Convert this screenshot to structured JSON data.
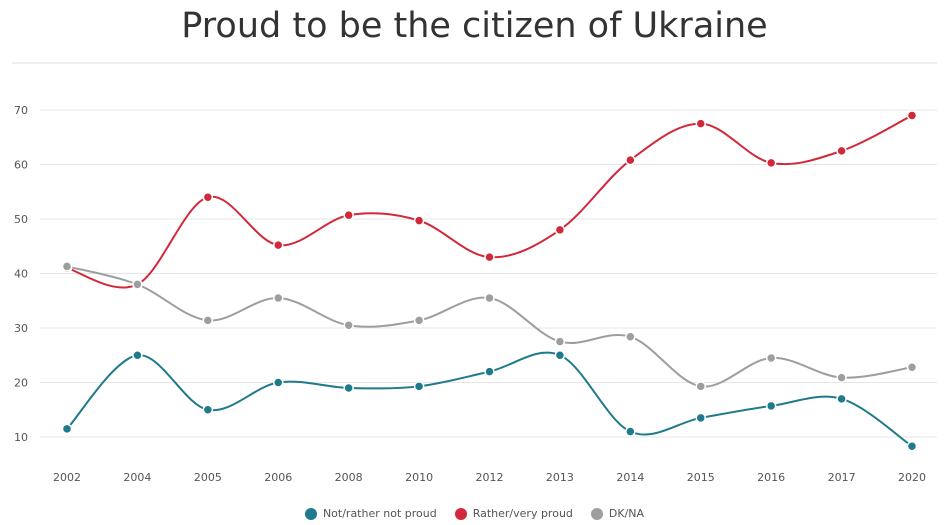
{
  "chart_data": {
    "type": "line",
    "title": "Proud to be the citizen of Ukraine",
    "categories": [
      "2002",
      "2004",
      "2005",
      "2006",
      "2008",
      "2010",
      "2012",
      "2013",
      "2014",
      "2015",
      "2016",
      "2017",
      "2020"
    ],
    "yticks": [
      10,
      20,
      30,
      40,
      50,
      60,
      70
    ],
    "ylim": [
      5,
      75
    ],
    "grid": true,
    "legend_position": "bottom",
    "series": [
      {
        "name": "Not/rather not proud",
        "color": "#1f7a8c",
        "values": [
          11.5,
          25,
          15,
          20,
          19,
          19.3,
          22,
          25,
          11,
          13.5,
          15.7,
          17,
          8.3
        ]
      },
      {
        "name": "Rather/very proud",
        "color": "#d1283a",
        "values": [
          41,
          38,
          54,
          45.2,
          50.7,
          49.7,
          43,
          48,
          60.8,
          67.5,
          60.3,
          62.5,
          69
        ]
      },
      {
        "name": "DK/NA",
        "color": "#9e9e9e",
        "values": [
          41.3,
          38,
          31.4,
          35.5,
          30.5,
          31.4,
          35.5,
          27.5,
          28.4,
          19.3,
          24.5,
          20.9,
          22.8
        ]
      }
    ]
  }
}
